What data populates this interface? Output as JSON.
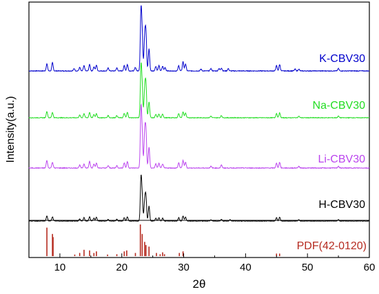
{
  "chart_data": {
    "type": "line",
    "xlabel": "2θ",
    "ylabel": "Intensity(a.u.)",
    "xlim": [
      5,
      60
    ],
    "x_ticks": [
      10,
      20,
      30,
      40,
      50,
      60
    ],
    "x_tick_labels": [
      "10",
      "20",
      "30",
      "40",
      "50",
      "60"
    ],
    "grid": false,
    "series": [
      {
        "name": "K-CBV30",
        "color": "#0000cc",
        "peaks": [
          [
            7.9,
            0.12
          ],
          [
            8.8,
            0.14
          ],
          [
            12.3,
            0.04
          ],
          [
            13.2,
            0.06
          ],
          [
            13.9,
            0.09
          ],
          [
            14.8,
            0.11
          ],
          [
            15.5,
            0.07
          ],
          [
            15.9,
            0.1
          ],
          [
            17.8,
            0.05
          ],
          [
            19.2,
            0.05
          ],
          [
            20.4,
            0.09
          ],
          [
            20.9,
            0.11
          ],
          [
            22.2,
            0.06
          ],
          [
            23.1,
            1.0
          ],
          [
            23.3,
            0.55
          ],
          [
            23.7,
            0.55
          ],
          [
            23.9,
            0.62
          ],
          [
            24.4,
            0.38
          ],
          [
            25.5,
            0.08
          ],
          [
            26.0,
            0.09
          ],
          [
            26.6,
            0.08
          ],
          [
            27.0,
            0.06
          ],
          [
            29.2,
            0.09
          ],
          [
            29.9,
            0.16
          ],
          [
            30.3,
            0.12
          ],
          [
            32.8,
            0.03
          ],
          [
            34.4,
            0.04
          ],
          [
            35.7,
            0.04
          ],
          [
            36.1,
            0.05
          ],
          [
            37.2,
            0.04
          ],
          [
            45.0,
            0.09
          ],
          [
            45.5,
            0.11
          ],
          [
            48.0,
            0.03
          ],
          [
            48.6,
            0.03
          ],
          [
            55.0,
            0.04
          ]
        ]
      },
      {
        "name": "Na-CBV30",
        "color": "#22dd22",
        "peaks": [
          [
            7.9,
            0.12
          ],
          [
            8.8,
            0.1
          ],
          [
            13.2,
            0.05
          ],
          [
            13.9,
            0.08
          ],
          [
            14.8,
            0.1
          ],
          [
            15.5,
            0.06
          ],
          [
            15.9,
            0.08
          ],
          [
            17.8,
            0.04
          ],
          [
            19.2,
            0.04
          ],
          [
            20.4,
            0.08
          ],
          [
            20.9,
            0.1
          ],
          [
            23.1,
            0.92
          ],
          [
            23.3,
            0.5
          ],
          [
            23.7,
            0.5
          ],
          [
            23.9,
            0.6
          ],
          [
            24.4,
            0.3
          ],
          [
            25.5,
            0.06
          ],
          [
            26.0,
            0.07
          ],
          [
            26.6,
            0.07
          ],
          [
            29.2,
            0.08
          ],
          [
            29.9,
            0.11
          ],
          [
            30.3,
            0.09
          ],
          [
            34.4,
            0.03
          ],
          [
            36.1,
            0.04
          ],
          [
            45.0,
            0.08
          ],
          [
            45.5,
            0.09
          ],
          [
            48.6,
            0.03
          ],
          [
            55.0,
            0.03
          ]
        ]
      },
      {
        "name": "Li-CBV30",
        "color": "#bb44ee",
        "peaks": [
          [
            7.9,
            0.13
          ],
          [
            8.8,
            0.1
          ],
          [
            13.2,
            0.05
          ],
          [
            13.9,
            0.07
          ],
          [
            14.8,
            0.11
          ],
          [
            15.5,
            0.07
          ],
          [
            15.9,
            0.09
          ],
          [
            17.8,
            0.04
          ],
          [
            19.2,
            0.04
          ],
          [
            20.4,
            0.09
          ],
          [
            20.9,
            0.11
          ],
          [
            23.1,
            0.98
          ],
          [
            23.3,
            0.5
          ],
          [
            23.7,
            0.58
          ],
          [
            23.9,
            0.6
          ],
          [
            24.4,
            0.36
          ],
          [
            25.5,
            0.07
          ],
          [
            26.0,
            0.08
          ],
          [
            26.6,
            0.07
          ],
          [
            29.2,
            0.09
          ],
          [
            29.9,
            0.13
          ],
          [
            30.3,
            0.1
          ],
          [
            34.4,
            0.03
          ],
          [
            36.1,
            0.05
          ],
          [
            45.0,
            0.08
          ],
          [
            45.5,
            0.1
          ],
          [
            48.6,
            0.03
          ],
          [
            55.0,
            0.03
          ]
        ]
      },
      {
        "name": "H-CBV30",
        "color": "#000000",
        "peaks": [
          [
            7.9,
            0.12
          ],
          [
            8.8,
            0.1
          ],
          [
            13.2,
            0.05
          ],
          [
            13.9,
            0.08
          ],
          [
            14.8,
            0.1
          ],
          [
            15.5,
            0.07
          ],
          [
            15.9,
            0.09
          ],
          [
            17.8,
            0.04
          ],
          [
            19.2,
            0.04
          ],
          [
            20.4,
            0.08
          ],
          [
            20.9,
            0.1
          ],
          [
            23.1,
            0.98
          ],
          [
            23.3,
            0.5
          ],
          [
            23.7,
            0.45
          ],
          [
            23.9,
            0.55
          ],
          [
            24.4,
            0.35
          ],
          [
            25.5,
            0.07
          ],
          [
            26.0,
            0.08
          ],
          [
            26.6,
            0.07
          ],
          [
            29.2,
            0.08
          ],
          [
            29.9,
            0.12
          ],
          [
            30.3,
            0.09
          ],
          [
            34.4,
            0.03
          ],
          [
            36.1,
            0.04
          ],
          [
            37.5,
            0.03
          ],
          [
            45.0,
            0.08
          ],
          [
            45.5,
            0.09
          ],
          [
            48.6,
            0.03
          ],
          [
            55.0,
            0.03
          ]
        ]
      }
    ],
    "reference": {
      "name": "PDF(42-0120)",
      "color": "#b52a1f",
      "sticks": [
        [
          7.9,
          0.9
        ],
        [
          8.8,
          0.7
        ],
        [
          8.9,
          0.6
        ],
        [
          12.4,
          0.05
        ],
        [
          13.2,
          0.1
        ],
        [
          13.9,
          0.2
        ],
        [
          14.8,
          0.18
        ],
        [
          15.5,
          0.1
        ],
        [
          15.9,
          0.15
        ],
        [
          17.7,
          0.05
        ],
        [
          19.2,
          0.06
        ],
        [
          20.4,
          0.15
        ],
        [
          20.8,
          0.18
        ],
        [
          22.2,
          0.1
        ],
        [
          23.0,
          1.0
        ],
        [
          23.3,
          0.7
        ],
        [
          23.7,
          0.45
        ],
        [
          23.9,
          0.35
        ],
        [
          24.4,
          0.3
        ],
        [
          25.6,
          0.1
        ],
        [
          26.2,
          0.06
        ],
        [
          26.6,
          0.12
        ],
        [
          26.9,
          0.06
        ],
        [
          29.3,
          0.1
        ],
        [
          29.9,
          0.15
        ],
        [
          45.0,
          0.08
        ],
        [
          45.5,
          0.08
        ]
      ]
    }
  }
}
